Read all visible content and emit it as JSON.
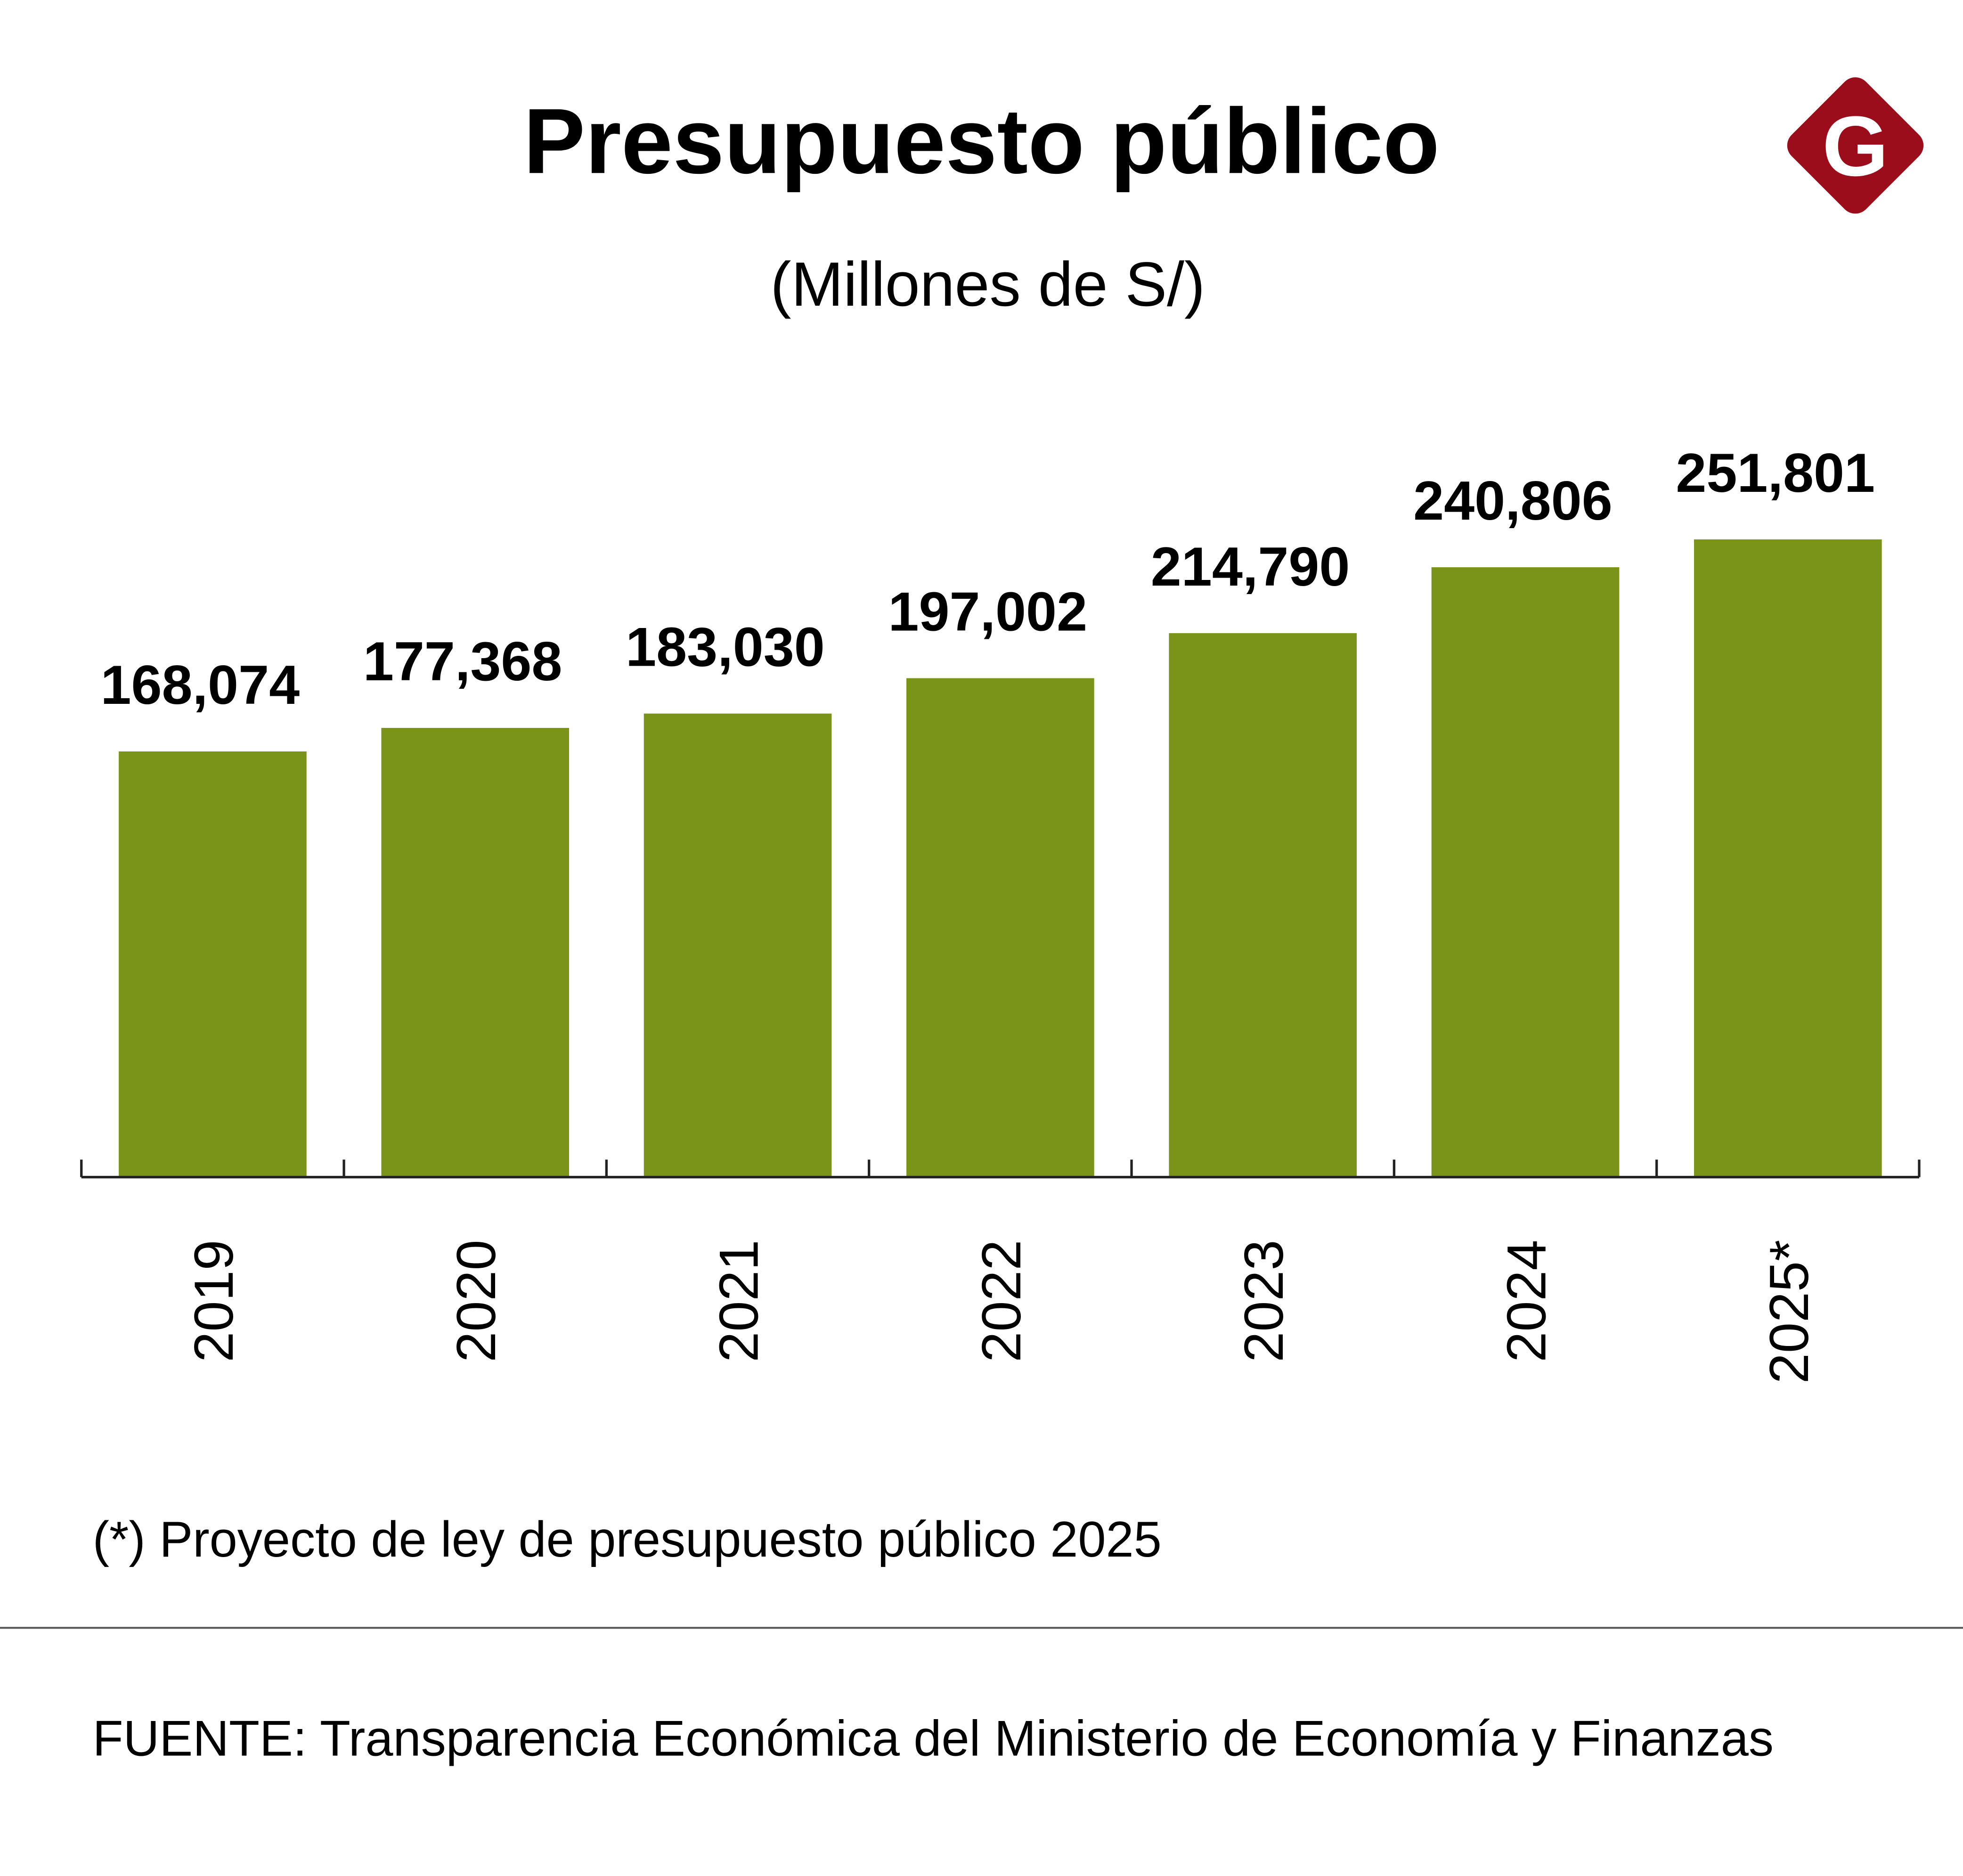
{
  "chart_data": {
    "type": "bar",
    "title": "Presupuesto público",
    "subtitle": "(Millones de S/)",
    "categories": [
      "2019",
      "2020",
      "2021",
      "2022",
      "2023",
      "2024",
      "2025*"
    ],
    "values": [
      168074,
      177368,
      183030,
      197002,
      214790,
      240806,
      251801
    ],
    "value_labels": [
      "168,074",
      "177,368",
      "183,030",
      "197,002",
      "214,790",
      "240,806",
      "251,801"
    ],
    "ylim": [
      0,
      260000
    ],
    "grid": false,
    "bar_color": "#7a9419",
    "note": "(*) Proyecto de ley de presupuesto público 2025",
    "source": "FUENTE: Transparencia Económica del Ministerio de Economía y Finanzas"
  },
  "logo": {
    "letter": "G",
    "color": "#9b0d1b"
  }
}
